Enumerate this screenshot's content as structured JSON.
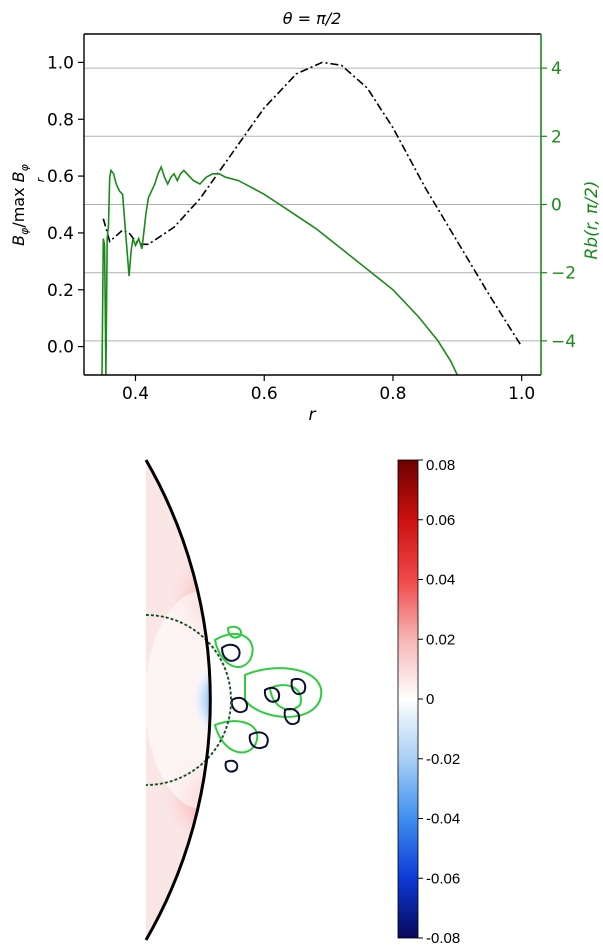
{
  "chart_data": [
    {
      "type": "line",
      "title": "θ = π/2",
      "xlabel": "r",
      "ylabel": "B_φ / max_r B_φ",
      "y2label": "Rb(r, π/2)",
      "xlim": [
        0.32,
        1.03
      ],
      "ylim": [
        -0.1,
        1.1
      ],
      "y2lim": [
        -5,
        5
      ],
      "xticks": [
        "0.4",
        "0.6",
        "0.8",
        "1.0"
      ],
      "yticks": [
        "0.0",
        "0.2",
        "0.4",
        "0.6",
        "0.8",
        "1.0"
      ],
      "y2ticks": [
        "−4",
        "−2",
        "0",
        "2",
        "4"
      ],
      "grid": "horizontal lines on right axis",
      "series": [
        {
          "axis": "left",
          "style": "dash-dot",
          "color": "#000000",
          "x": [
            0.35,
            0.36,
            0.37,
            0.38,
            0.39,
            0.4,
            0.41,
            0.42,
            0.44,
            0.46,
            0.5,
            0.55,
            0.6,
            0.65,
            0.69,
            0.72,
            0.76,
            0.8,
            0.85,
            0.9,
            0.95,
            1.0
          ],
          "values": [
            0.45,
            0.37,
            0.39,
            0.41,
            0.4,
            0.37,
            0.36,
            0.36,
            0.39,
            0.42,
            0.52,
            0.68,
            0.84,
            0.96,
            1.0,
            0.99,
            0.91,
            0.77,
            0.56,
            0.37,
            0.18,
            0.0
          ]
        },
        {
          "axis": "right",
          "style": "solid",
          "color": "#1a8a1a",
          "x": [
            0.348,
            0.35,
            0.352,
            0.354,
            0.356,
            0.358,
            0.36,
            0.362,
            0.366,
            0.37,
            0.375,
            0.38,
            0.385,
            0.39,
            0.393,
            0.396,
            0.4,
            0.405,
            0.41,
            0.413,
            0.416,
            0.42,
            0.425,
            0.43,
            0.435,
            0.44,
            0.445,
            0.45,
            0.455,
            0.46,
            0.465,
            0.47,
            0.475,
            0.48,
            0.49,
            0.5,
            0.51,
            0.52,
            0.53,
            0.54,
            0.56,
            0.58,
            0.6,
            0.64,
            0.68,
            0.72,
            0.76,
            0.8,
            0.84,
            0.87,
            0.89,
            0.9
          ],
          "values": [
            -5.0,
            -1.0,
            -1.2,
            -5.0,
            -1.0,
            -0.6,
            0.8,
            1.0,
            0.9,
            0.6,
            0.4,
            0.3,
            -0.9,
            -2.1,
            -1.4,
            -1.0,
            -1.2,
            -1.0,
            -1.3,
            -0.8,
            -0.3,
            0.2,
            0.4,
            0.6,
            0.9,
            1.1,
            0.8,
            0.6,
            0.8,
            0.9,
            0.7,
            0.9,
            1.0,
            0.9,
            0.7,
            0.6,
            0.8,
            0.9,
            0.9,
            0.8,
            0.7,
            0.5,
            0.3,
            -0.2,
            -0.7,
            -1.3,
            -1.9,
            -2.5,
            -3.3,
            -4.0,
            -4.6,
            -5.0
          ]
        }
      ]
    },
    {
      "type": "heatmap",
      "colorbar": {
        "colors": [
          "#08085a",
          "#0d3ad6",
          "#3f8ff0",
          "#a9cff5",
          "#ffffff",
          "#f7b5b5",
          "#f04848",
          "#cc1010",
          "#6e0000"
        ],
        "ticks": [
          "0.08",
          "0.06",
          "0.04",
          "0.02",
          "0",
          "-0.02",
          "-0.04",
          "-0.06",
          "-0.08"
        ],
        "range": [
          -0.08,
          0.08
        ]
      },
      "contour_colors": [
        "#0b1030",
        "#2ecc40"
      ]
    }
  ]
}
